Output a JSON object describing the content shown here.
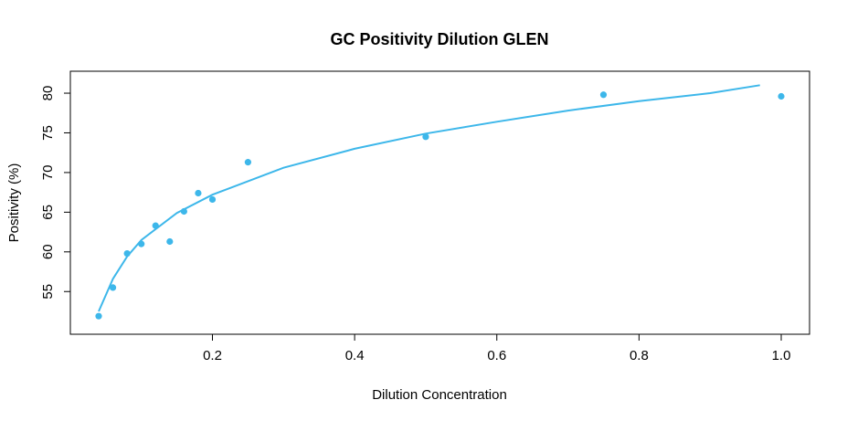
{
  "chart_data": {
    "type": "scatter",
    "title": "GC Positivity Dilution GLEN",
    "xlabel": "Dilution Concentration",
    "ylabel": "Positivity (%)",
    "xlim": [
      0.04,
      1.0
    ],
    "ylim": [
      51.0,
      81.5
    ],
    "x_ticks": [
      "0.2",
      "0.4",
      "0.6",
      "0.8",
      "1.0"
    ],
    "y_ticks": [
      "55",
      "60",
      "65",
      "70",
      "75",
      "80"
    ],
    "grid": false,
    "color": "#3db7ea",
    "points": {
      "x": [
        0.04,
        0.06,
        0.08,
        0.1,
        0.12,
        0.14,
        0.16,
        0.18,
        0.2,
        0.25,
        0.5,
        0.75,
        1.0
      ],
      "y": [
        51.9,
        55.5,
        59.8,
        61.0,
        63.3,
        61.3,
        65.1,
        67.4,
        66.6,
        71.3,
        74.5,
        79.8,
        79.6
      ]
    },
    "trend": {
      "x": [
        0.04,
        0.06,
        0.08,
        0.1,
        0.15,
        0.2,
        0.3,
        0.4,
        0.5,
        0.6,
        0.7,
        0.8,
        0.9,
        0.97
      ],
      "y": [
        52.5,
        56.6,
        59.4,
        61.5,
        64.9,
        67.2,
        70.6,
        73.0,
        74.9,
        76.4,
        77.8,
        79.0,
        80.0,
        81.0
      ]
    }
  }
}
